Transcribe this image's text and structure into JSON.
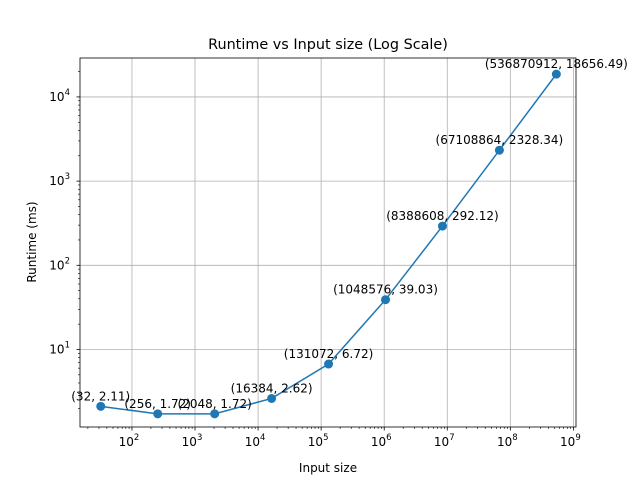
{
  "chart_data": {
    "type": "line",
    "title": "Runtime vs Input size (Log Scale)",
    "xlabel": "Input size",
    "ylabel": "Runtime (ms)",
    "xscale": "log",
    "yscale": "log",
    "xlim": [
      15,
      1100000000
    ],
    "ylim": [
      1.2,
      29000
    ],
    "grid": true,
    "color": "#1f77b4",
    "x_ticks": [
      {
        "base": "10",
        "exp": "2",
        "value": 100
      },
      {
        "base": "10",
        "exp": "3",
        "value": 1000
      },
      {
        "base": "10",
        "exp": "4",
        "value": 10000
      },
      {
        "base": "10",
        "exp": "5",
        "value": 100000
      },
      {
        "base": "10",
        "exp": "6",
        "value": 1000000
      },
      {
        "base": "10",
        "exp": "7",
        "value": 10000000
      },
      {
        "base": "10",
        "exp": "8",
        "value": 100000000
      },
      {
        "base": "10",
        "exp": "9",
        "value": 1000000000
      }
    ],
    "y_ticks": [
      {
        "base": "10",
        "exp": "1",
        "value": 10
      },
      {
        "base": "10",
        "exp": "2",
        "value": 100
      },
      {
        "base": "10",
        "exp": "3",
        "value": 1000
      },
      {
        "base": "10",
        "exp": "4",
        "value": 10000
      }
    ],
    "points": [
      {
        "x": 32,
        "y": 2.11,
        "label": "(32, 2.11)"
      },
      {
        "x": 256,
        "y": 1.72,
        "label": "(256, 1.72)"
      },
      {
        "x": 2048,
        "y": 1.72,
        "label": "(2048, 1.72)"
      },
      {
        "x": 16384,
        "y": 2.62,
        "label": "(16384, 2.62)"
      },
      {
        "x": 131072,
        "y": 6.72,
        "label": "(131072, 6.72)"
      },
      {
        "x": 1048576,
        "y": 39.03,
        "label": "(1048576, 39.03)"
      },
      {
        "x": 8388608,
        "y": 292.12,
        "label": "(8388608, 292.12)"
      },
      {
        "x": 67108864,
        "y": 2328.34,
        "label": "(67108864, 2328.34)"
      },
      {
        "x": 536870912,
        "y": 18656.49,
        "label": "(536870912, 18656.49)"
      }
    ]
  }
}
